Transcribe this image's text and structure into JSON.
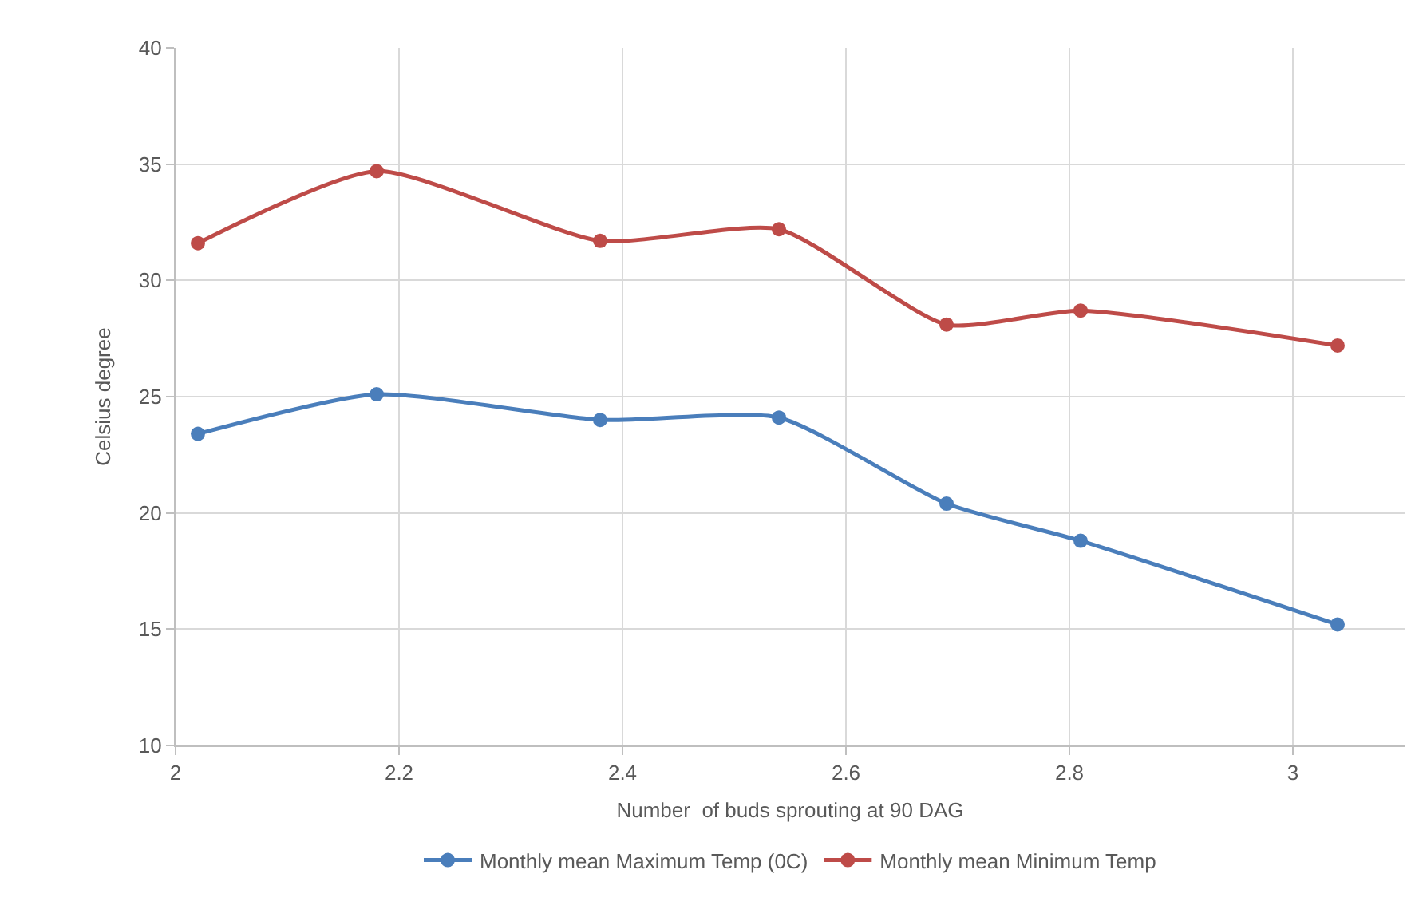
{
  "chart_data": {
    "type": "line",
    "xlabel": "Number  of buds sprouting at 90 DAG",
    "ylabel": "Celsius degree",
    "x": [
      2.02,
      2.18,
      2.38,
      2.54,
      2.69,
      2.81,
      3.04
    ],
    "series": [
      {
        "name": "Monthly mean Maximum Temp (0C)",
        "color": "#4a7ebb",
        "values": [
          23.4,
          25.1,
          24.0,
          24.1,
          20.4,
          18.8,
          15.2
        ]
      },
      {
        "name": "Monthly mean Minimum Temp",
        "color": "#be4b48",
        "values": [
          31.6,
          34.7,
          31.7,
          32.2,
          28.1,
          28.7,
          27.2
        ]
      }
    ],
    "xlim": [
      2,
      3.1
    ],
    "xticks": [
      2,
      2.2,
      2.4,
      2.6,
      2.8,
      3
    ],
    "ylim": [
      10,
      40
    ],
    "yticks": [
      10,
      15,
      20,
      25,
      30,
      35,
      40
    ],
    "grid": true,
    "legend": "bottom",
    "marker": "circle",
    "line_style": "solid"
  }
}
